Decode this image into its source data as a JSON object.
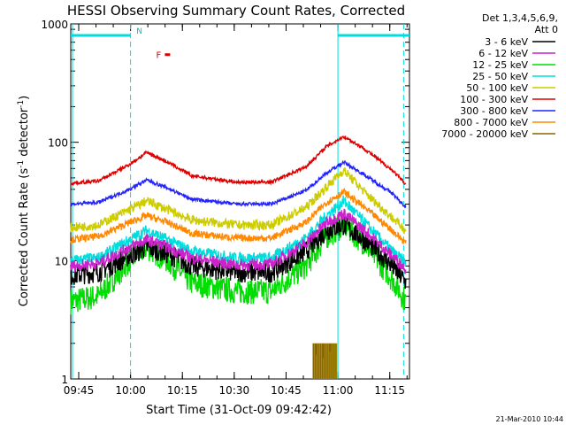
{
  "chart_data": {
    "type": "line",
    "title": "HESSI Observing Summary Count Rates, Corrected",
    "xlabel": "Start Time (31-Oct-09 09:42:42)",
    "ylabel_main": "Corrected Count Rate (s",
    "ylabel_sup1": "-1",
    "ylabel_mid": " detector",
    "ylabel_sup2": "-1",
    "ylabel_end": ")",
    "x_unit": "minutes after 09:42:42",
    "xlim": [
      0,
      98
    ],
    "ylim": [
      1,
      1000
    ],
    "y_scale": "log",
    "x_ticks": [
      {
        "label": "09:45",
        "value": 2.3
      },
      {
        "label": "10:00",
        "value": 17.3
      },
      {
        "label": "10:15",
        "value": 32.3
      },
      {
        "label": "10:30",
        "value": 47.3
      },
      {
        "label": "10:45",
        "value": 62.3
      },
      {
        "label": "11:00",
        "value": 77.3
      },
      {
        "label": "11:15",
        "value": 92.3
      }
    ],
    "y_ticks": [
      {
        "label": "1",
        "value": 1
      },
      {
        "label": "10",
        "value": 10
      },
      {
        "label": "100",
        "value": 100
      },
      {
        "label": "1000",
        "value": 1000
      }
    ],
    "legend_header": [
      "Det 1,3,4,5,6,9,",
      "Att 0"
    ],
    "legend_placement": "right",
    "series": [
      {
        "name": "3 - 6 keV",
        "color": "#000000",
        "x": [
          0,
          8,
          17,
          22,
          28,
          35,
          48,
          58,
          68,
          74,
          79,
          85,
          93,
          97
        ],
        "values": [
          7.5,
          8,
          11,
          13,
          11.5,
          9,
          8,
          8,
          12,
          18,
          20,
          15,
          9,
          6.5
        ]
      },
      {
        "name": "6 - 12 keV",
        "color": "#cc22cc",
        "x": [
          0,
          8,
          17,
          22,
          28,
          35,
          48,
          58,
          68,
          74,
          79,
          85,
          93,
          97
        ],
        "values": [
          9,
          9.5,
          13,
          15,
          13,
          10.5,
          9.2,
          9.3,
          14,
          21,
          25,
          18,
          11,
          8.5
        ]
      },
      {
        "name": "12 - 25 keV",
        "color": "#00dd00",
        "x": [
          0,
          8,
          17,
          22,
          28,
          35,
          48,
          58,
          68,
          74,
          79,
          85,
          93,
          97
        ],
        "values": [
          4.5,
          5,
          10,
          13,
          10,
          6.5,
          5.5,
          5.5,
          9,
          16,
          20,
          14,
          7,
          4.5
        ]
      },
      {
        "name": "25 - 50 keV",
        "color": "#00dddd",
        "x": [
          0,
          8,
          17,
          22,
          28,
          35,
          48,
          58,
          68,
          74,
          79,
          85,
          93,
          97
        ],
        "values": [
          10,
          10.5,
          15,
          18,
          15,
          12,
          10.5,
          10.5,
          15.5,
          24,
          32,
          21,
          12,
          9.5
        ]
      },
      {
        "name": "50 - 100 keV",
        "color": "#cccc00",
        "x": [
          0,
          8,
          17,
          22,
          28,
          35,
          48,
          58,
          68,
          74,
          79,
          85,
          93,
          97
        ],
        "values": [
          19,
          20,
          27,
          32,
          27,
          22,
          20,
          20,
          28,
          42,
          58,
          38,
          23,
          18
        ]
      },
      {
        "name": "100 - 300 keV",
        "color": "#dd0000",
        "x": [
          0,
          8,
          17,
          22,
          28,
          35,
          48,
          58,
          68,
          74,
          79,
          85,
          93,
          97
        ],
        "values": [
          45,
          47,
          65,
          82,
          68,
          52,
          46,
          46,
          62,
          92,
          112,
          88,
          58,
          44
        ]
      },
      {
        "name": "300 - 800 keV",
        "color": "#2222ff",
        "x": [
          0,
          8,
          17,
          22,
          28,
          35,
          48,
          58,
          68,
          74,
          79,
          85,
          93,
          97
        ],
        "values": [
          30,
          31,
          40,
          48,
          41,
          33,
          30,
          30,
          39,
          55,
          68,
          53,
          37,
          28
        ]
      },
      {
        "name": "800 - 7000 keV",
        "color": "#ff8800",
        "x": [
          0,
          8,
          17,
          22,
          28,
          35,
          48,
          58,
          68,
          74,
          79,
          85,
          93,
          97
        ],
        "values": [
          15,
          16,
          21,
          24,
          21,
          17,
          15.5,
          15.5,
          21,
          31,
          38,
          28,
          18,
          14
        ]
      },
      {
        "name": "7000 - 20000 keV",
        "color": "#886600",
        "x": [
          70,
          70.5,
          71,
          71.5,
          72,
          72.5,
          73,
          73.5,
          74,
          74.5,
          75,
          75.5,
          76,
          76.5,
          77
        ],
        "values": [
          2,
          2,
          1.6,
          2,
          2,
          2,
          1.5,
          2,
          2,
          2,
          1.7,
          2,
          2,
          2,
          2
        ]
      }
    ],
    "flag_labels": {
      "night": "N",
      "flare": "F"
    },
    "attenuator_bar": {
      "y": 800,
      "segments": [
        [
          0,
          17.3
        ],
        [
          77.3,
          98
        ]
      ]
    },
    "night_lines": [
      17.3,
      96.3
    ],
    "saa_lines": [
      0,
      77.3
    ],
    "flare_mark": {
      "x": 28,
      "y": 550
    }
  },
  "footer": {
    "date_stamp": "21-Mar-2010 10:44"
  }
}
